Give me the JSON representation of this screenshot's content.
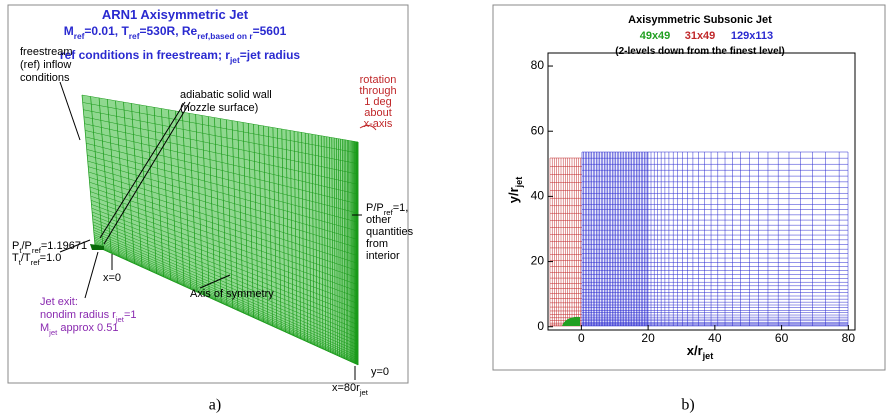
{
  "panel_a": {
    "title": [
      [
        "ARN1 Axisymmetric Jet"
      ]
    ],
    "conditions": [
      [
        "M",
        "ref",
        "=0.01, T",
        "ref",
        "=530R, Re",
        "ref,based on r",
        "=5601"
      ]
    ],
    "freestream_note": [
      [
        "ref conditions in freestream; r",
        "jet",
        "=jet radius"
      ]
    ],
    "inflow": [
      [
        "freestream"
      ],
      [
        "(ref) inflow"
      ],
      [
        "conditions"
      ]
    ],
    "wall": [
      [
        "adiabatic solid wall"
      ],
      [
        "(nozzle surface)"
      ]
    ],
    "rotation": [
      [
        "rotation"
      ],
      [
        "through"
      ],
      [
        "1 deg"
      ],
      [
        "about"
      ],
      [
        "x-axis"
      ]
    ],
    "outflow": [
      [
        "P/P",
        "ref",
        "=1,"
      ],
      [
        "other"
      ],
      [
        "quantities"
      ],
      [
        "from"
      ],
      [
        "interior"
      ]
    ],
    "inlet": [
      [
        "P",
        "t",
        "/P",
        "ref",
        "=1.19671"
      ],
      [
        "T",
        "t",
        "/T",
        "ref",
        "=1.0"
      ]
    ],
    "x0": [
      [
        "x=0"
      ]
    ],
    "jet_exit": [
      [
        "Jet exit:"
      ],
      [
        "nondim radius r",
        "jet",
        "=1"
      ],
      [
        "M",
        "jet",
        " approx 0.51"
      ]
    ],
    "axis": [
      [
        "Axis of symmetry"
      ]
    ],
    "y0": [
      [
        "y=0"
      ]
    ],
    "x80": [
      [
        "x=80r",
        "jet"
      ]
    ],
    "caption": "a)"
  },
  "panel_b": {
    "title": [
      [
        "Axisymmetric Subsonic Jet"
      ]
    ],
    "grids": [
      {
        "label": "49x49",
        "color": "#22a022"
      },
      {
        "label": "31x49",
        "color": "#c0282a"
      },
      {
        "label": "129x113",
        "color": "#2a2ad0"
      }
    ],
    "subtitle": [
      [
        "(2-levels down from the finest level)"
      ]
    ],
    "xlabel": [
      [
        "x/r",
        "jet"
      ]
    ],
    "ylabel": [
      [
        "y/r",
        "jet"
      ]
    ],
    "xlim": [
      -10,
      82
    ],
    "ylim": [
      -1,
      84
    ],
    "xticks": [
      0,
      20,
      40,
      60,
      80
    ],
    "yticks": [
      0,
      20,
      40,
      60,
      80
    ],
    "caption": "b)"
  }
}
